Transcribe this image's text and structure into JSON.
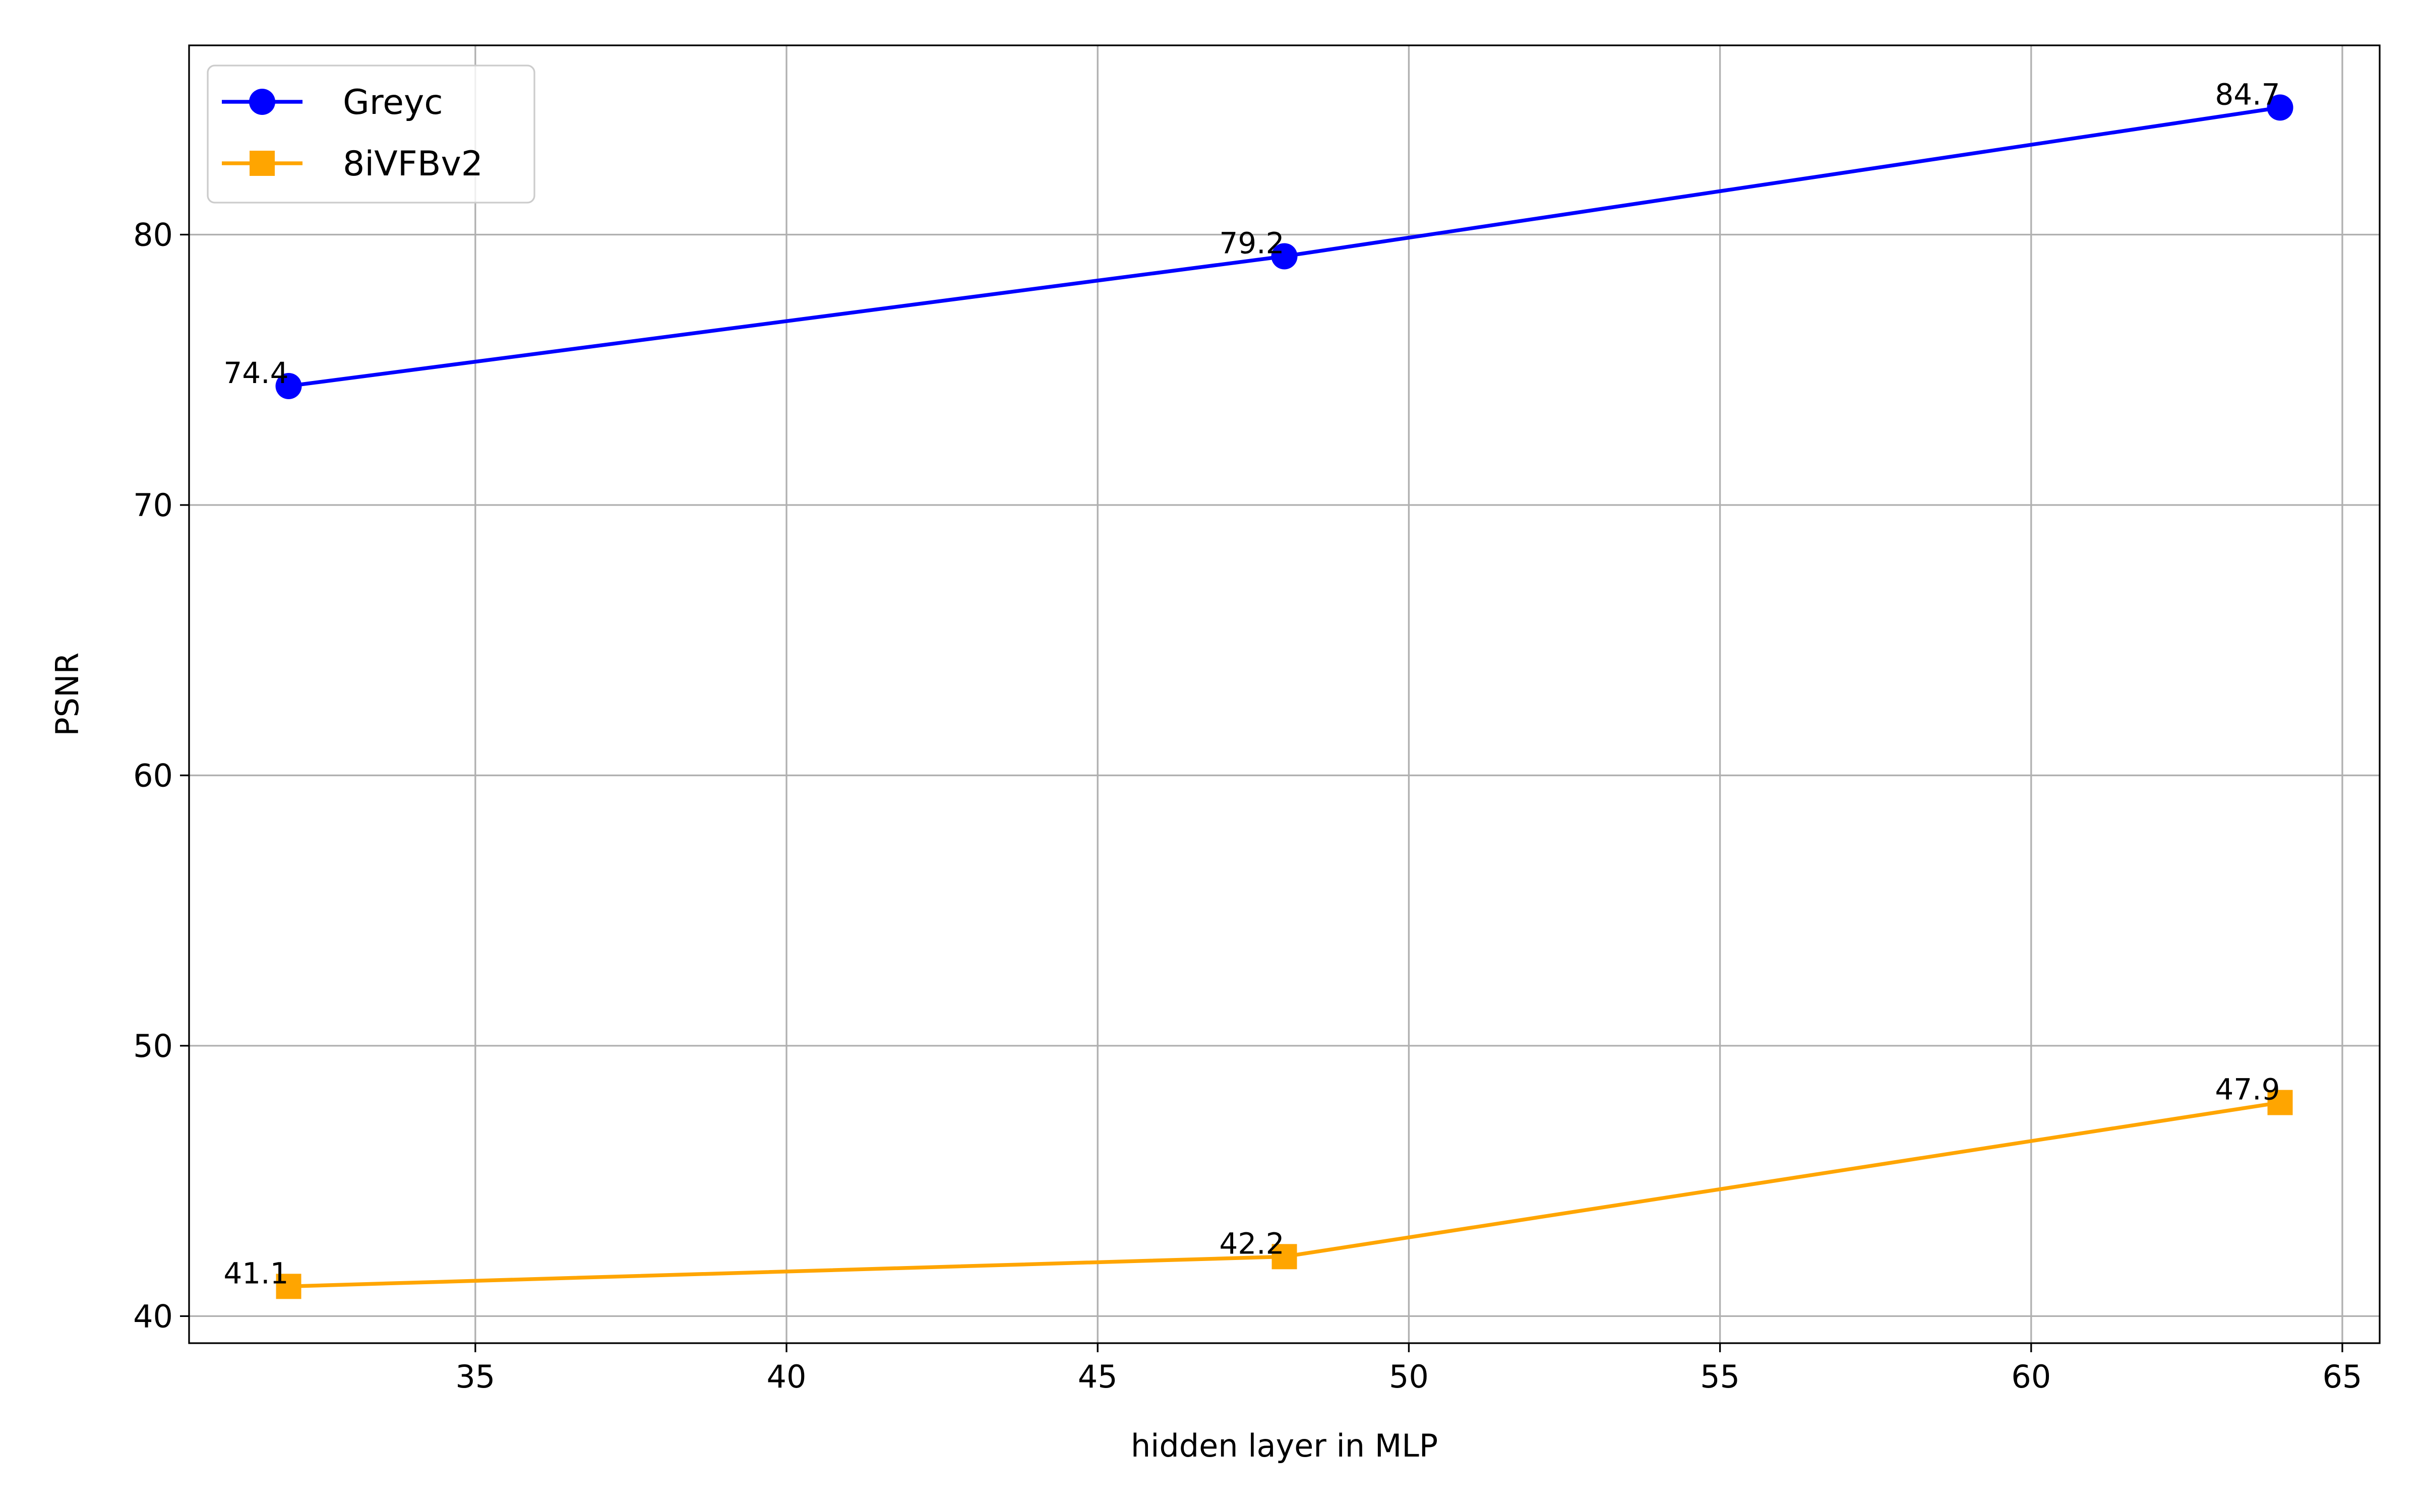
{
  "chart_data": {
    "type": "line",
    "xlabel": "hidden layer in MLP",
    "ylabel": "PSNR",
    "x": [
      32,
      48,
      64
    ],
    "xlim": [
      30.4,
      65.6
    ],
    "ylim": [
      39.0,
      87.0
    ],
    "xticks": [
      35,
      40,
      45,
      50,
      55,
      60,
      65
    ],
    "yticks": [
      40,
      50,
      60,
      70,
      80
    ],
    "grid": true,
    "legend_position": "upper-left",
    "series": [
      {
        "name": "Greyc",
        "values": [
          74.4,
          79.2,
          84.7
        ],
        "labels": [
          "74.4",
          "79.2",
          "84.7"
        ],
        "color": "#0000ff",
        "marker": "circle"
      },
      {
        "name": "8iVFBv2",
        "values": [
          41.1,
          42.2,
          47.9
        ],
        "labels": [
          "41.1",
          "42.2",
          "47.9"
        ],
        "color": "#ffa500",
        "marker": "square"
      }
    ]
  }
}
